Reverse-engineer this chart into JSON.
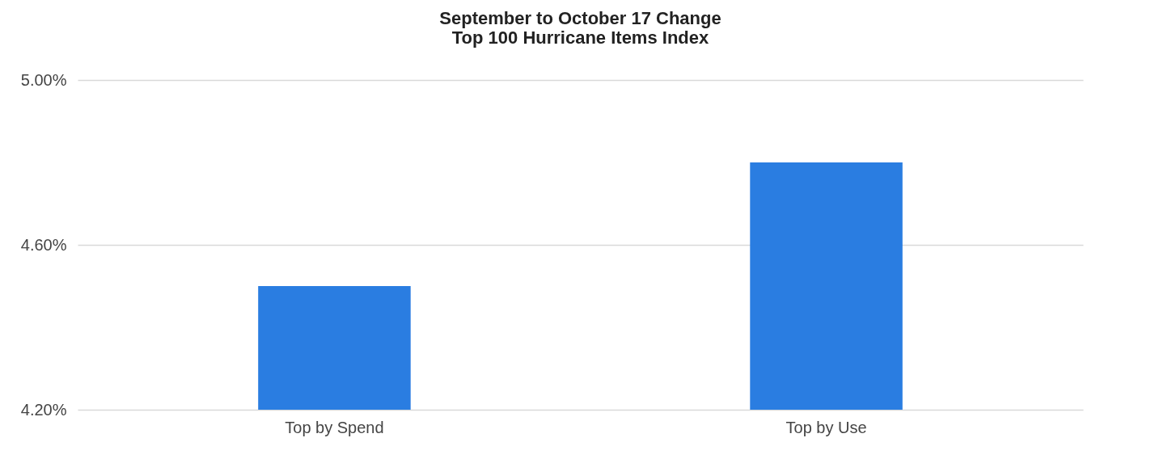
{
  "chart_data": {
    "type": "bar",
    "title": "September to October 17 Change",
    "subtitle": "Top 100 Hurricane Items Index",
    "categories": [
      "Top by Spend",
      "Top by Use"
    ],
    "values": [
      4.5,
      4.8
    ],
    "color": "#2a7de1",
    "ylim": [
      4.2,
      5.0
    ],
    "yticks": [
      {
        "value": 4.2,
        "label": "4.20%"
      },
      {
        "value": 4.6,
        "label": "4.60%"
      },
      {
        "value": 5.0,
        "label": "5.00%"
      }
    ],
    "grid": "y"
  }
}
